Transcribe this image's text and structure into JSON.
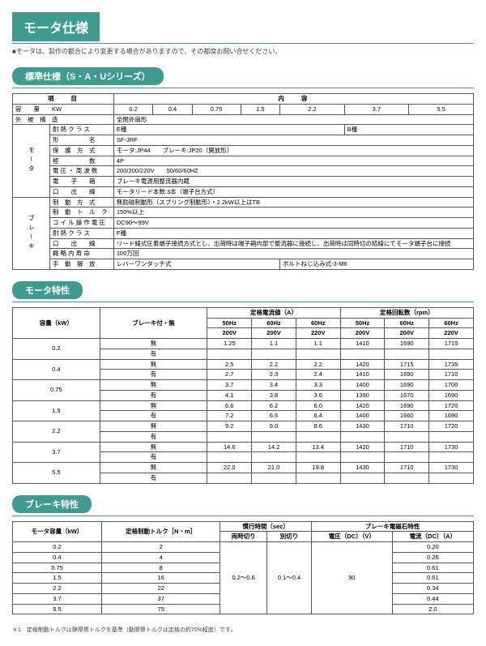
{
  "pageTitle": "モータ仕様",
  "topNote": "■モータは、製作の都合により変更する場合がありますので、その都度お問い合せください。",
  "s1": {
    "title": "標準仕様（S・A・Uシリーズ）",
    "h1": "項　　目",
    "h2": "内　　容",
    "r1l": "容　　量　　KW",
    "r1v1": "0.2",
    "r1v2": "0.4",
    "r1v3": "0.75",
    "r1v4": "1.5",
    "r1v5": "2.2",
    "r1v6": "3.7",
    "r1v7": "5.5",
    "r2l": "外　被　構　造",
    "r2v": "全閉外扇形",
    "vg1": "モータ",
    "r3l": "耐 熱 ク ラ ス",
    "r3v1": "E種",
    "r3v2": "B種",
    "r4l": "形　　　　　名",
    "r4v": "SF-JRF",
    "r5l": "保　護　方　式",
    "r5v": "モータ:JP44　　ブレーキ:JP20（開放形）",
    "r6l": "極　　　　　数",
    "r6v": "4P",
    "r7l": "電 圧 ・ 周 波 数",
    "r7v": "200/200/220V　　50/60/60HZ",
    "r8l": "電　　子　　箱",
    "r8v": "ブレーキ電源用整流器内蔵",
    "r9l": "口　　出　　線",
    "r9v": "モータリード本数:3本（端子台方式）",
    "vg2": "ブレーキ",
    "r10l": "制　動　方　式",
    "r10v": "無励磁制動形（スプリング制動形）・2.2kW以上はTB",
    "r11l": "制　動　ト　ル　ク",
    "r11v": "150%以上",
    "r12l": "コ イ ル 操 作 電 圧",
    "r12v": "DC90〜99V",
    "r13l": "耐 熱 ク ラ ス",
    "r13v": "F種",
    "r14l": "口　　出　　線",
    "r14v": "リード線式圧着端子接続方式とし、出荷時は端子箱内部で整流器に接続し、出荷時は同時切の結線にてモータ端子台に接続",
    "r15l": "概 略 内 寿 命",
    "r15v": "100万回",
    "r16l": "手　動　解　放",
    "r16v1": "レバーワンタッチ式",
    "r16v2": "ボルトねじ込み式-3-M6"
  },
  "s2": {
    "title": "モータ特性",
    "h_cap": "容量（kW）",
    "h_brake": "ブレーキ付・無",
    "h_cur": "定格電流値（A）",
    "h_rpm": "定格回転数（rpm）",
    "h50": "50Hz",
    "h60": "60Hz",
    "v200": "200V",
    "v220": "220V",
    "lbl_nashi": "無",
    "lbl_ari": "有",
    "caps": [
      "0.2",
      "0.4",
      "0.75",
      "1.5",
      "2.2",
      "3.7",
      "5.5"
    ],
    "rows": [
      [
        "無",
        "1.25",
        "1.1",
        "1.1",
        "1410",
        "1690",
        "1715"
      ],
      [
        "有",
        "",
        "",
        "",
        "",
        "",
        ""
      ],
      [
        "無",
        "2.5",
        "2.2",
        "2.2",
        "1420",
        "1715",
        "1735"
      ],
      [
        "有",
        "2.7",
        "2.3",
        "2.4",
        "1410",
        "1690",
        "1710"
      ],
      [
        "無",
        "3.7",
        "3.4",
        "3.3",
        "1400",
        "1690",
        "1700"
      ],
      [
        "有",
        "4.1",
        "3.8",
        "3.6",
        "1390",
        "1670",
        "1690"
      ],
      [
        "無",
        "6.6",
        "6.2",
        "6.0",
        "1420",
        "1690",
        "1720"
      ],
      [
        "有",
        "7.2",
        "6.6",
        "6.4",
        "1400",
        "1660",
        "1690"
      ],
      [
        "無",
        "9.2",
        "9.0",
        "8.6",
        "1430",
        "1710",
        "1720"
      ],
      [
        "有",
        "",
        "",
        "",
        "",
        "",
        ""
      ],
      [
        "無",
        "14.6",
        "14.2",
        "13.4",
        "1420",
        "1710",
        "1730"
      ],
      [
        "有",
        "",
        "",
        "",
        "",
        "",
        ""
      ],
      [
        "無",
        "22.0",
        "21.0",
        "19.8",
        "1430",
        "1710",
        "1730"
      ],
      [
        "有",
        "",
        "",
        "",
        "",
        "",
        ""
      ]
    ]
  },
  "s3": {
    "title": "ブレーキ特性",
    "h_cap": "モータ容量（kW）",
    "h_torque": "定格制動トルク［N・m］",
    "h_time": "慣行時間（sec）",
    "h_mag": "ブレーキ電磁石特性",
    "h_both": "両時切り",
    "h_sep": "別切り",
    "h_volt": "電圧（DC）（V）",
    "h_amp": "電流（DC）（A）",
    "mergeBoth": "0.2〜0.6",
    "mergeSep": "0.1〜0.4",
    "mergeVolt": "90",
    "rows": [
      [
        "0.2",
        "2",
        "0.20"
      ],
      [
        "0.4",
        "4",
        "0.26"
      ],
      [
        "0.75",
        "8",
        "0.61"
      ],
      [
        "1.5",
        "16",
        "0.61"
      ],
      [
        "2.2",
        "22",
        "0.34"
      ],
      [
        "3.7",
        "37",
        "0.44"
      ],
      [
        "5.5",
        "75",
        "2.0"
      ]
    ],
    "foot": "＊1　定格制動トルクは静摩擦トルクを基準（動摩擦トルクは定格の約70%程度）です。"
  }
}
